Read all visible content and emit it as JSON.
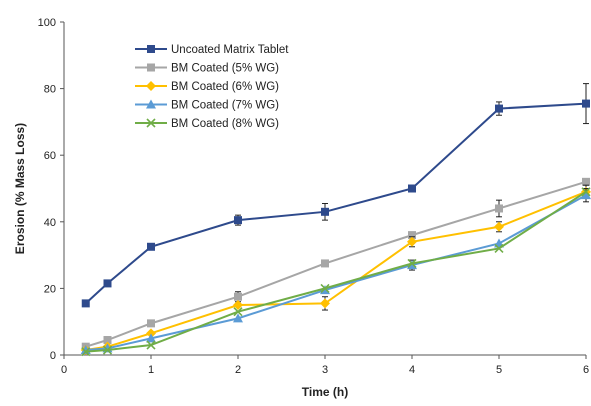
{
  "chart_data": {
    "type": "line",
    "title": "",
    "xlabel": "Time (h)",
    "ylabel": "Erosion (% Mass Loss)",
    "xlim": [
      0,
      6
    ],
    "ylim": [
      0,
      100
    ],
    "xticks": [
      "0",
      "1",
      "2",
      "3",
      "4",
      "5",
      "6"
    ],
    "yticks": [
      "0",
      "20",
      "40",
      "60",
      "80",
      "100"
    ],
    "grid": false,
    "legend_position": "top-left",
    "series": [
      {
        "name": "Uncoated Matrix Tablet",
        "color": "#2e4a8c",
        "marker": "square",
        "x": [
          0.25,
          0.5,
          1,
          2,
          3,
          4,
          5,
          6
        ],
        "y": [
          15.5,
          21.5,
          32.5,
          40.5,
          43,
          50,
          74,
          75.5
        ],
        "err": [
          0,
          0,
          0,
          1.5,
          2.5,
          0,
          2,
          6
        ]
      },
      {
        "name": "BM Coated (5% WG)",
        "color": "#a6a6a6",
        "marker": "square",
        "x": [
          0.25,
          0.5,
          1,
          2,
          3,
          4,
          5,
          6
        ],
        "y": [
          2.5,
          4.5,
          9.5,
          17.5,
          27.5,
          36,
          44,
          52
        ],
        "err": [
          0,
          0,
          0,
          1.5,
          0,
          0,
          2.5,
          0
        ]
      },
      {
        "name": "BM Coated (6% WG)",
        "color": "#ffc000",
        "marker": "diamond",
        "x": [
          0.25,
          0.5,
          1,
          2,
          3,
          4,
          5,
          6
        ],
        "y": [
          1.5,
          2.5,
          6.5,
          15,
          15.5,
          34,
          38.5,
          49
        ],
        "err": [
          0,
          0,
          0,
          0,
          2,
          1.5,
          1.5,
          2
        ]
      },
      {
        "name": "BM Coated (7% WG)",
        "color": "#5b9bd5",
        "marker": "triangle",
        "x": [
          0.25,
          0.5,
          1,
          2,
          3,
          4,
          5,
          6
        ],
        "y": [
          1.5,
          2,
          5,
          11,
          19.5,
          27,
          33.5,
          48
        ],
        "err": [
          0,
          0,
          0,
          0,
          0,
          1.5,
          0,
          2
        ]
      },
      {
        "name": "BM Coated (8% WG)",
        "color": "#70ad47",
        "marker": "x",
        "x": [
          0.25,
          0.5,
          1,
          2,
          3,
          4,
          5,
          6
        ],
        "y": [
          1,
          1.5,
          3,
          13,
          20,
          27.5,
          32,
          49
        ],
        "err": [
          0,
          0,
          0,
          0,
          0,
          0,
          0,
          0
        ]
      }
    ]
  }
}
